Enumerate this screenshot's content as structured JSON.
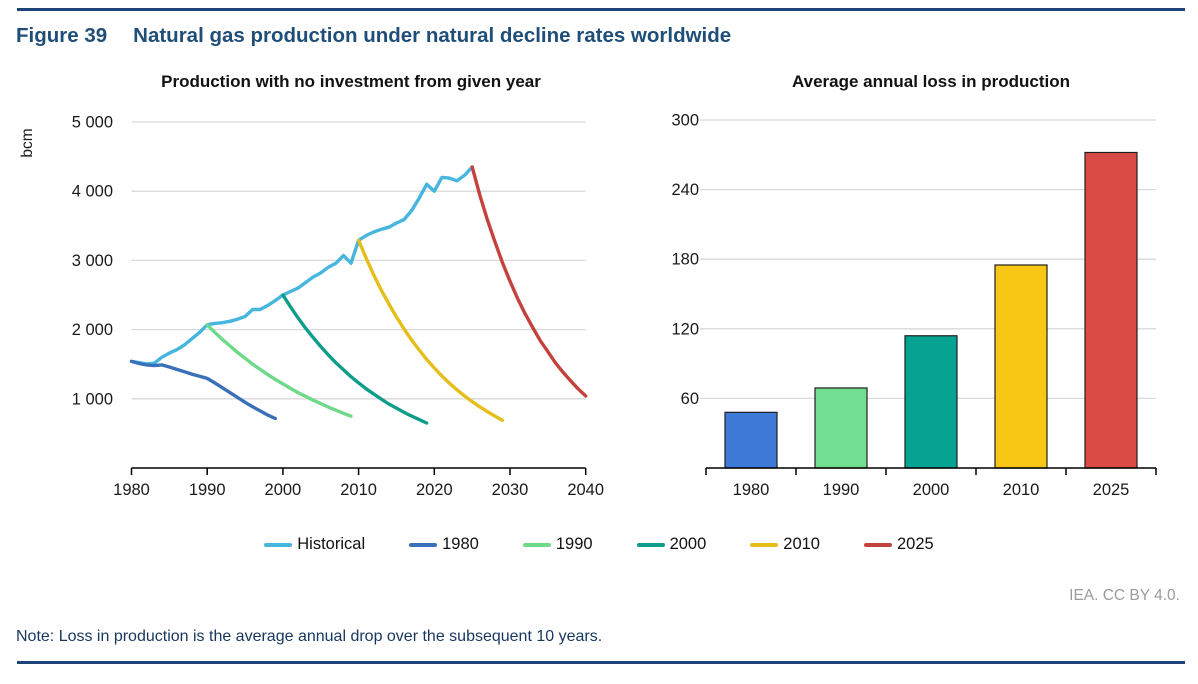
{
  "figure": {
    "label": "Figure 39",
    "title": "Natural gas production under natural decline rates worldwide",
    "attribution": "IEA. CC BY 4.0.",
    "note": "Note: Loss in production is the average annual drop over the subsequent 10 years.",
    "accent_color": "#1C4679"
  },
  "chart_data": [
    {
      "type": "line",
      "title": "Production with no investment from given year",
      "ylabel": "bcm",
      "ylim": [
        0,
        5000
      ],
      "yticks": [
        1000,
        2000,
        3000,
        4000,
        5000
      ],
      "ytick_labels": [
        "1 000",
        "2 000",
        "3 000",
        "4 000",
        "5 000"
      ],
      "xlim": [
        1980,
        2040
      ],
      "xticks": [
        1980,
        1990,
        2000,
        2010,
        2020,
        2030,
        2040
      ],
      "grid": true,
      "legend_position": "bottom",
      "series": [
        {
          "name": "Historical",
          "color": "#47B6DE",
          "start_year": 1980,
          "values": [
            1540,
            1525,
            1505,
            1515,
            1600,
            1660,
            1710,
            1780,
            1870,
            1960,
            2070,
            2090,
            2100,
            2120,
            2150,
            2190,
            2290,
            2290,
            2350,
            2420,
            2500,
            2550,
            2600,
            2680,
            2760,
            2820,
            2900,
            2960,
            3070,
            2960,
            3290,
            3360,
            3410,
            3450,
            3480,
            3540,
            3590,
            3720,
            3900,
            4100,
            4000,
            4200,
            4190,
            4150,
            4230,
            4350
          ]
        },
        {
          "name": "1980",
          "color": "#3A70B8",
          "start_year": 1980,
          "values": [
            1540,
            1510,
            1490,
            1480,
            1490,
            1460,
            1425,
            1390,
            1355,
            1325,
            1295,
            1230,
            1160,
            1090,
            1020,
            950,
            885,
            825,
            765,
            715
          ]
        },
        {
          "name": "1990",
          "color": "#6FD98A",
          "start_year": 1990,
          "values": [
            2070,
            1960,
            1860,
            1765,
            1670,
            1585,
            1500,
            1425,
            1350,
            1280,
            1215,
            1150,
            1090,
            1035,
            980,
            930,
            880,
            835,
            790,
            750
          ]
        },
        {
          "name": "2000",
          "color": "#0D9D89",
          "start_year": 2000,
          "values": [
            2500,
            2330,
            2170,
            2020,
            1885,
            1755,
            1635,
            1520,
            1420,
            1320,
            1230,
            1145,
            1070,
            995,
            925,
            865,
            805,
            750,
            700,
            650
          ]
        },
        {
          "name": "2010",
          "color": "#E6BE1A",
          "start_year": 2010,
          "values": [
            3290,
            3030,
            2790,
            2570,
            2370,
            2180,
            2010,
            1850,
            1705,
            1570,
            1445,
            1330,
            1225,
            1130,
            1040,
            960,
            885,
            815,
            750,
            690
          ]
        },
        {
          "name": "2025",
          "color": "#C4423E",
          "start_year": 2025,
          "values": [
            4350,
            3950,
            3590,
            3270,
            2970,
            2700,
            2450,
            2230,
            2030,
            1840,
            1680,
            1520,
            1385,
            1260,
            1145,
            1040
          ]
        }
      ]
    },
    {
      "type": "bar",
      "title": "Average annual loss in production",
      "categories": [
        "1980",
        "1990",
        "2000",
        "2010",
        "2025"
      ],
      "values": [
        48,
        69,
        114,
        175,
        272
      ],
      "colors": [
        "#3D79D6",
        "#72DE92",
        "#06A392",
        "#F8C715",
        "#DB4B45"
      ],
      "bar_border_color": "#1f1f1f",
      "ylim": [
        0,
        300
      ],
      "yticks": [
        60,
        120,
        180,
        240,
        300
      ],
      "ytick_labels": [
        "60",
        "120",
        "180",
        "240",
        "300"
      ],
      "grid": true
    }
  ]
}
